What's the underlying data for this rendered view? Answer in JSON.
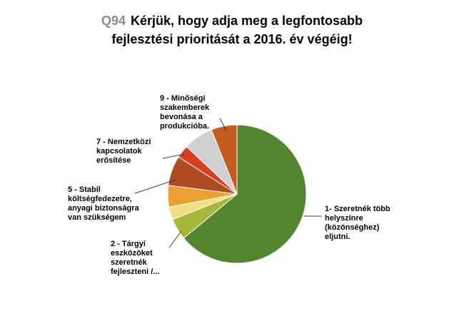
{
  "title": {
    "prefix": "Q94",
    "line1": "Kérjük, hogy adja meg a legfontosabb",
    "line2": "fejlesztési prioritását a 2016. év végéig!"
  },
  "chart_data": {
    "type": "pie",
    "title": "Q94 Kérjük, hogy adja meg a legfontosabb fejlesztési prioritását a 2016. év végéig!",
    "start_angle": "top",
    "direction": "clockwise",
    "values_are": "percent-estimated",
    "legend_position": "callout-labels",
    "slices": [
      {
        "name": "1- Szeretnék több helyszínre (közönséghez) eljutni.",
        "value": 64,
        "color": "#53842e"
      },
      {
        "name": "2 - Tárgyi eszközöket szeretnék fejleszteni /...",
        "value": 5,
        "color": "#a6b73c"
      },
      {
        "name": "",
        "value": 3,
        "color": "#f3de85"
      },
      {
        "name": "",
        "value": 5,
        "color": "#eca02f"
      },
      {
        "name": "5 - Stabil költségfedezetre, anyagi biztonságra van szükségem",
        "value": 7,
        "color": "#b04a23"
      },
      {
        "name": "7 - Nemzetközi kapcsolatok erősítése",
        "value": 3,
        "color": "#d6401f"
      },
      {
        "name": "",
        "value": 7,
        "color": "#d0d0d0"
      },
      {
        "name": "9 - Minőségi szakemberek bevonása a produkcióba.",
        "value": 6,
        "color": "#c45a1d"
      }
    ]
  },
  "callouts": {
    "s1": "1- Szeretnék több\nhelyszínre\n(közönséghez)\neljutni.",
    "s2": "2 - Tárgyi\neszközöket\nszeretnék\nfejleszteni /...",
    "s5": "5 - Stabil\nköltségfedezetre,\nanyagi biztonságra\nvan szükségem",
    "s7": "7 - Nemzetközi\nkapcsolatok\nerősítése",
    "s9": "9 - Minőségi\nszakemberek\nbevonása a\nprodukcióba."
  }
}
